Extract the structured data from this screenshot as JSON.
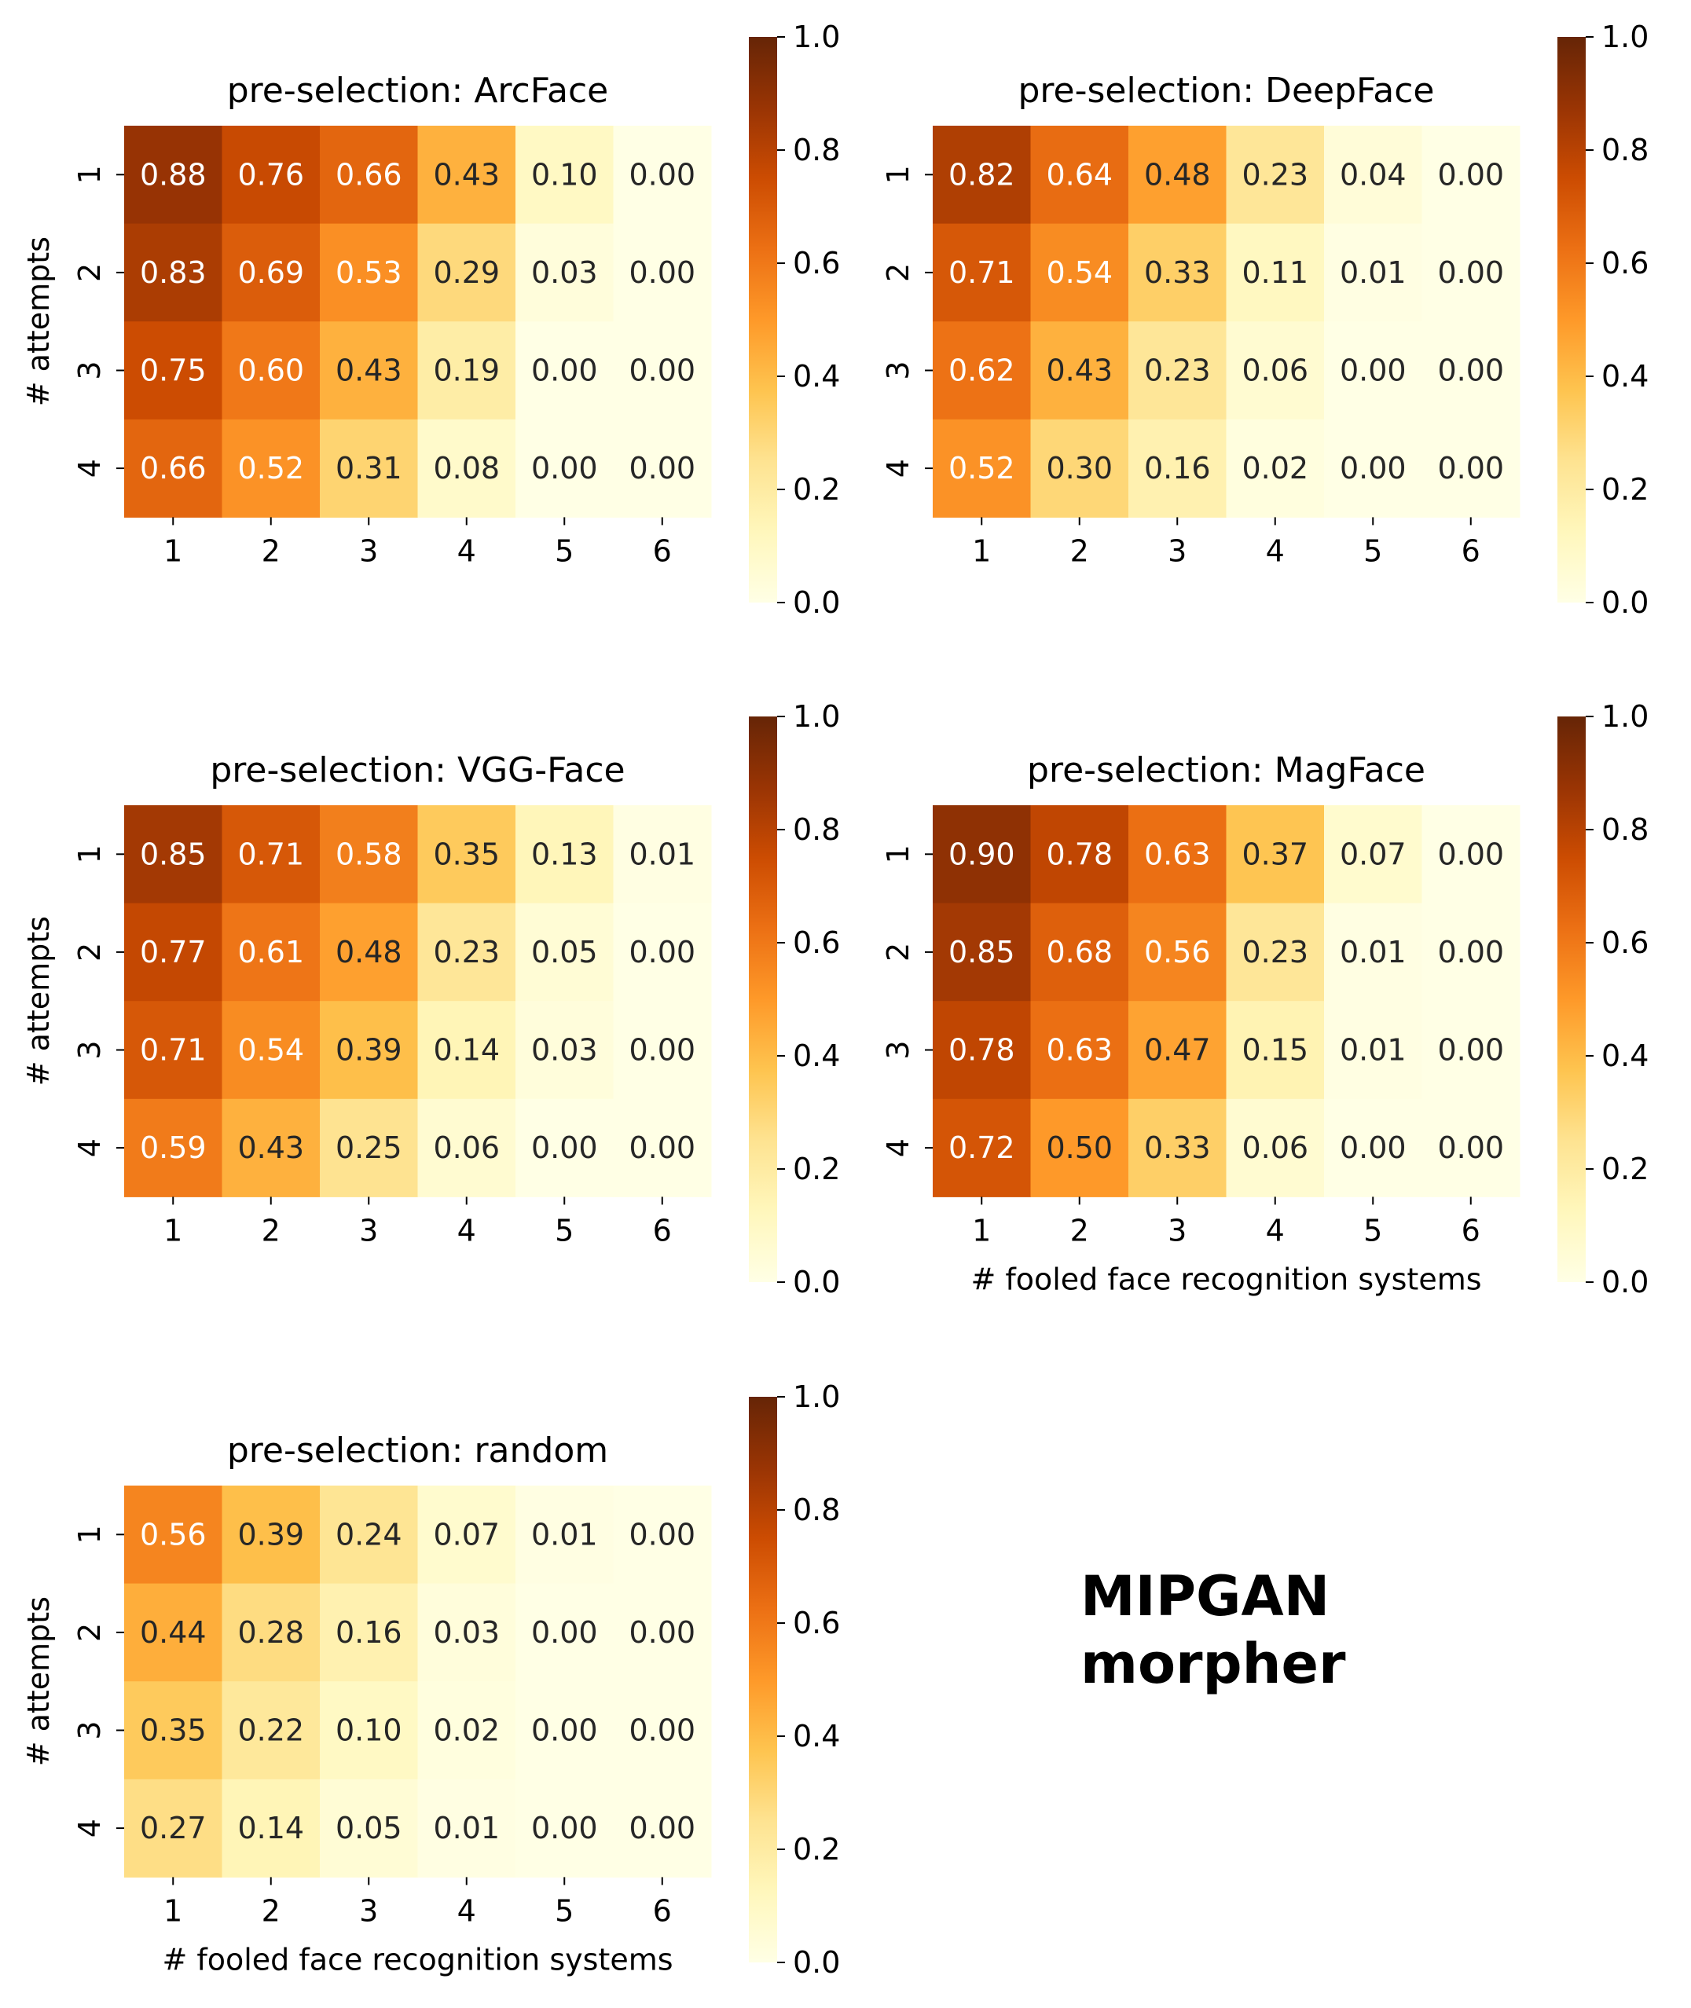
{
  "chart_data": [
    {
      "type": "heatmap",
      "title": "pre-selection: ArcFace",
      "xlabel": "",
      "ylabel": "# attempts",
      "x": [
        "1",
        "2",
        "3",
        "4",
        "5",
        "6"
      ],
      "y": [
        "1",
        "2",
        "3",
        "4"
      ],
      "z": [
        [
          0.88,
          0.76,
          0.66,
          0.43,
          0.1,
          0.0
        ],
        [
          0.83,
          0.69,
          0.53,
          0.29,
          0.03,
          0.0
        ],
        [
          0.75,
          0.6,
          0.43,
          0.19,
          0.0,
          0.0
        ],
        [
          0.66,
          0.52,
          0.31,
          0.08,
          0.0,
          0.0
        ]
      ],
      "labels": [
        [
          "0.88",
          "0.76",
          "0.66",
          "0.43",
          "0.10",
          "0.00"
        ],
        [
          "0.83",
          "0.69",
          "0.53",
          "0.29",
          "0.03",
          "0.00"
        ],
        [
          "0.75",
          "0.60",
          "0.43",
          "0.19",
          "0.00",
          "0.00"
        ],
        [
          "0.66",
          "0.52",
          "0.31",
          "0.08",
          "0.00",
          "0.00"
        ]
      ],
      "colorbar": {
        "range": [
          0,
          1
        ],
        "ticks": [
          "0.0",
          "0.2",
          "0.4",
          "0.6",
          "0.8",
          "1.0"
        ]
      }
    },
    {
      "type": "heatmap",
      "title": "pre-selection: DeepFace",
      "xlabel": "",
      "ylabel": "",
      "x": [
        "1",
        "2",
        "3",
        "4",
        "5",
        "6"
      ],
      "y": [
        "1",
        "2",
        "3",
        "4"
      ],
      "z": [
        [
          0.82,
          0.64,
          0.48,
          0.23,
          0.04,
          0.0
        ],
        [
          0.71,
          0.54,
          0.33,
          0.11,
          0.01,
          0.0
        ],
        [
          0.62,
          0.43,
          0.23,
          0.06,
          0.0,
          0.0
        ],
        [
          0.52,
          0.3,
          0.16,
          0.02,
          0.0,
          0.0
        ]
      ],
      "labels": [
        [
          "0.82",
          "0.64",
          "0.48",
          "0.23",
          "0.04",
          "0.00"
        ],
        [
          "0.71",
          "0.54",
          "0.33",
          "0.11",
          "0.01",
          "0.00"
        ],
        [
          "0.62",
          "0.43",
          "0.23",
          "0.06",
          "0.00",
          "0.00"
        ],
        [
          "0.52",
          "0.30",
          "0.16",
          "0.02",
          "0.00",
          "0.00"
        ]
      ],
      "colorbar": {
        "range": [
          0,
          1
        ],
        "ticks": [
          "0.0",
          "0.2",
          "0.4",
          "0.6",
          "0.8",
          "1.0"
        ]
      }
    },
    {
      "type": "heatmap",
      "title": "pre-selection: VGG-Face",
      "xlabel": "",
      "ylabel": "# attempts",
      "x": [
        "1",
        "2",
        "3",
        "4",
        "5",
        "6"
      ],
      "y": [
        "1",
        "2",
        "3",
        "4"
      ],
      "z": [
        [
          0.85,
          0.71,
          0.58,
          0.35,
          0.13,
          0.01
        ],
        [
          0.77,
          0.61,
          0.48,
          0.23,
          0.05,
          0.0
        ],
        [
          0.71,
          0.54,
          0.39,
          0.14,
          0.03,
          0.0
        ],
        [
          0.59,
          0.43,
          0.25,
          0.06,
          0.0,
          0.0
        ]
      ],
      "labels": [
        [
          "0.85",
          "0.71",
          "0.58",
          "0.35",
          "0.13",
          "0.01"
        ],
        [
          "0.77",
          "0.61",
          "0.48",
          "0.23",
          "0.05",
          "0.00"
        ],
        [
          "0.71",
          "0.54",
          "0.39",
          "0.14",
          "0.03",
          "0.00"
        ],
        [
          "0.59",
          "0.43",
          "0.25",
          "0.06",
          "0.00",
          "0.00"
        ]
      ],
      "colorbar": {
        "range": [
          0,
          1
        ],
        "ticks": [
          "0.0",
          "0.2",
          "0.4",
          "0.6",
          "0.8",
          "1.0"
        ]
      }
    },
    {
      "type": "heatmap",
      "title": "pre-selection: MagFace",
      "xlabel": "# fooled face recognition systems",
      "ylabel": "",
      "x": [
        "1",
        "2",
        "3",
        "4",
        "5",
        "6"
      ],
      "y": [
        "1",
        "2",
        "3",
        "4"
      ],
      "z": [
        [
          0.9,
          0.78,
          0.63,
          0.37,
          0.07,
          0.0
        ],
        [
          0.85,
          0.68,
          0.56,
          0.23,
          0.01,
          0.0
        ],
        [
          0.78,
          0.63,
          0.47,
          0.15,
          0.01,
          0.0
        ],
        [
          0.72,
          0.5,
          0.33,
          0.06,
          0.0,
          0.0
        ]
      ],
      "labels": [
        [
          "0.90",
          "0.78",
          "0.63",
          "0.37",
          "0.07",
          "0.00"
        ],
        [
          "0.85",
          "0.68",
          "0.56",
          "0.23",
          "0.01",
          "0.00"
        ],
        [
          "0.78",
          "0.63",
          "0.47",
          "0.15",
          "0.01",
          "0.00"
        ],
        [
          "0.72",
          "0.50",
          "0.33",
          "0.06",
          "0.00",
          "0.00"
        ]
      ],
      "colorbar": {
        "range": [
          0,
          1
        ],
        "ticks": [
          "0.0",
          "0.2",
          "0.4",
          "0.6",
          "0.8",
          "1.0"
        ]
      }
    },
    {
      "type": "heatmap",
      "title": "pre-selection: random",
      "xlabel": "# fooled face recognition systems",
      "ylabel": "# attempts",
      "x": [
        "1",
        "2",
        "3",
        "4",
        "5",
        "6"
      ],
      "y": [
        "1",
        "2",
        "3",
        "4"
      ],
      "z": [
        [
          0.56,
          0.39,
          0.24,
          0.07,
          0.01,
          0.0
        ],
        [
          0.44,
          0.28,
          0.16,
          0.03,
          0.0,
          0.0
        ],
        [
          0.35,
          0.22,
          0.1,
          0.02,
          0.0,
          0.0
        ],
        [
          0.27,
          0.14,
          0.05,
          0.01,
          0.0,
          0.0
        ]
      ],
      "labels": [
        [
          "0.56",
          "0.39",
          "0.24",
          "0.07",
          "0.01",
          "0.00"
        ],
        [
          "0.44",
          "0.28",
          "0.16",
          "0.03",
          "0.00",
          "0.00"
        ],
        [
          "0.35",
          "0.22",
          "0.10",
          "0.02",
          "0.00",
          "0.00"
        ],
        [
          "0.27",
          "0.14",
          "0.05",
          "0.01",
          "0.00",
          "0.00"
        ]
      ],
      "colorbar": {
        "range": [
          0,
          1
        ],
        "ticks": [
          "0.0",
          "0.2",
          "0.4",
          "0.6",
          "0.8",
          "1.0"
        ]
      }
    }
  ],
  "annotation": {
    "line1": "MIPGAN",
    "line2": "morpher"
  }
}
